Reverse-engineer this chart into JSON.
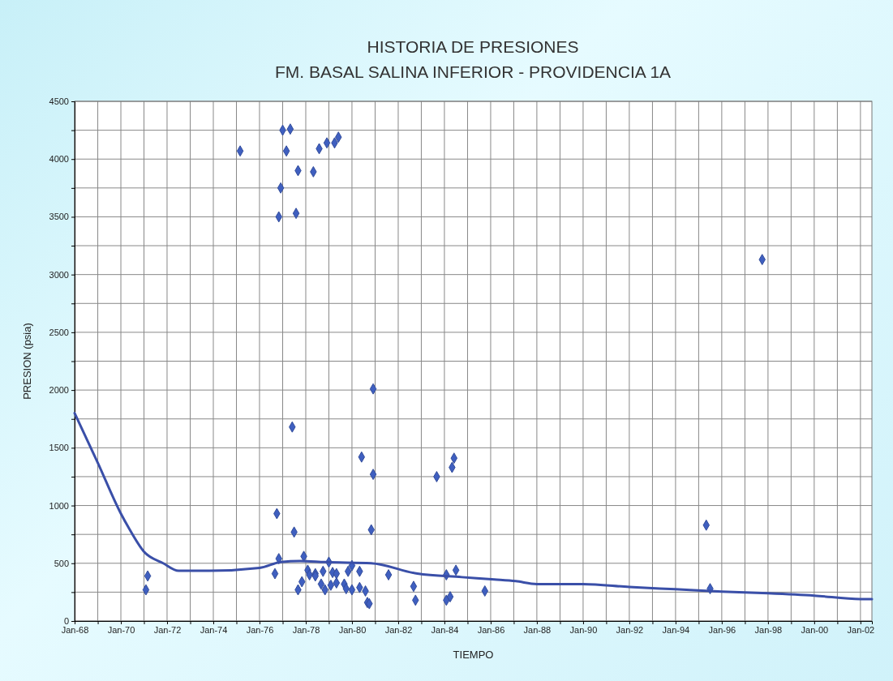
{
  "chart_data": {
    "type": "scatter",
    "title": "HISTORIA DE PRESIONES",
    "subtitle": "FM. BASAL SALINA INFERIOR - PROVIDENCIA 1A",
    "xlabel": "TIEMPO",
    "ylabel": "PRESION (psia)",
    "xlim": [
      "1968-01",
      "2002-07"
    ],
    "xticks": [
      {
        "value": "1968-01",
        "label": "Jan-68"
      },
      {
        "value": "1969-01",
        "label": null
      },
      {
        "value": "1970-01",
        "label": "Jan-70"
      },
      {
        "value": "1971-01",
        "label": null
      },
      {
        "value": "1972-01",
        "label": "Jan-72"
      },
      {
        "value": "1973-01",
        "label": null
      },
      {
        "value": "1974-01",
        "label": "Jan-74"
      },
      {
        "value": "1975-01",
        "label": null
      },
      {
        "value": "1976-01",
        "label": "Jan-76"
      },
      {
        "value": "1977-01",
        "label": null
      },
      {
        "value": "1978-01",
        "label": "Jan-78"
      },
      {
        "value": "1979-01",
        "label": null
      },
      {
        "value": "1980-01",
        "label": "Jan-80"
      },
      {
        "value": "1981-01",
        "label": null
      },
      {
        "value": "1982-01",
        "label": "Jan-82"
      },
      {
        "value": "1983-01",
        "label": null
      },
      {
        "value": "1984-01",
        "label": "Jan-84"
      },
      {
        "value": "1985-01",
        "label": null
      },
      {
        "value": "1986-01",
        "label": "Jan-86"
      },
      {
        "value": "1987-01",
        "label": null
      },
      {
        "value": "1988-01",
        "label": "Jan-88"
      },
      {
        "value": "1989-01",
        "label": null
      },
      {
        "value": "1990-01",
        "label": "Jan-90"
      },
      {
        "value": "1991-01",
        "label": null
      },
      {
        "value": "1992-01",
        "label": "Jan-92"
      },
      {
        "value": "1993-01",
        "label": null
      },
      {
        "value": "1994-01",
        "label": "Jan-94"
      },
      {
        "value": "1995-01",
        "label": null
      },
      {
        "value": "1996-01",
        "label": "Jan-96"
      },
      {
        "value": "1997-01",
        "label": null
      },
      {
        "value": "1998-01",
        "label": "Jan-98"
      },
      {
        "value": "1999-01",
        "label": null
      },
      {
        "value": "2000-01",
        "label": "Jan-00"
      },
      {
        "value": "2001-01",
        "label": null
      },
      {
        "value": "2002-01",
        "label": "Jan-02"
      }
    ],
    "ylim": [
      0,
      4500
    ],
    "yticks": [
      0,
      {
        "value": 250,
        "label": null
      },
      500,
      {
        "value": 750,
        "label": null
      },
      1000,
      {
        "value": 1250,
        "label": null
      },
      1500,
      {
        "value": 1750,
        "label": null
      },
      2000,
      {
        "value": 2250,
        "label": null
      },
      2500,
      {
        "value": 2750,
        "label": null
      },
      3000,
      {
        "value": 3250,
        "label": null
      },
      3500,
      {
        "value": 3750,
        "label": null
      },
      4000,
      {
        "value": 4250,
        "label": null
      },
      4500
    ],
    "grid": true,
    "series": [
      {
        "marker": "diamond",
        "color": "#3f5fc0",
        "x": [
          "1975-03",
          "1976-11",
          "1976-12",
          "1977-01",
          "1977-03",
          "1977-05",
          "1977-08",
          "1977-09",
          "1978-05",
          "1978-08",
          "1978-12",
          "1979-04",
          "1979-06",
          "1977-06",
          "1980-06",
          "1980-12",
          "1976-10",
          "1977-07",
          "1980-11",
          "1976-11",
          "1977-12",
          "1976-09",
          "1971-03",
          "1971-02",
          "1977-11",
          "1977-09",
          "1978-02",
          "1978-03",
          "1978-06",
          "1978-10",
          "1978-06",
          "1979-01",
          "1979-03",
          "1979-05",
          "1978-09",
          "1978-11",
          "1979-02",
          "1979-05",
          "1979-09",
          "1979-10",
          "1979-11",
          "1980-01",
          "1980-05",
          "1980-01",
          "1980-05",
          "1980-08",
          "1980-09",
          "1980-10",
          "1981-08",
          "1980-12",
          "1983-09",
          "1984-06",
          "1984-05",
          "1984-07",
          "1982-09",
          "1982-10",
          "1984-02",
          "1984-02",
          "1984-04",
          "1985-10",
          "1997-10",
          "1995-05",
          "1995-07"
        ],
        "values": [
          4070,
          3500,
          3750,
          4250,
          4070,
          4260,
          3530,
          3900,
          3890,
          4090,
          4140,
          4140,
          4190,
          1680,
          1420,
          1270,
          930,
          770,
          790,
          540,
          560,
          410,
          390,
          270,
          340,
          270,
          440,
          400,
          410,
          430,
          390,
          510,
          420,
          410,
          320,
          270,
          310,
          330,
          320,
          280,
          430,
          480,
          430,
          270,
          290,
          260,
          160,
          150,
          400,
          2010,
          1250,
          1410,
          1330,
          440,
          300,
          180,
          400,
          180,
          210,
          260,
          3130,
          830,
          280
        ]
      },
      {
        "type": "line",
        "marker": "none",
        "line_style": "solid",
        "color": "#3a4fa8",
        "x": [
          "1968-01",
          "1969-01",
          "1970-01",
          "1970-05",
          "1971-01",
          "1971-11",
          "1972-07",
          "1973-11",
          "1976-01",
          "1976-12",
          "1977-10",
          "1978-11",
          "1980-11",
          "1982-11",
          "1984-10",
          "1986-03",
          "1987-02",
          "1988-01",
          "1990-01",
          "1992-01",
          "1994-01",
          "1996-01",
          "1998-01",
          "2000-01",
          "2002-01",
          "2002-07"
        ],
        "values": [
          1800,
          1370,
          930,
          810,
          600,
          500,
          435,
          435,
          460,
          510,
          520,
          510,
          500,
          410,
          380,
          360,
          345,
          320,
          320,
          295,
          275,
          255,
          240,
          220,
          190,
          190
        ]
      }
    ]
  }
}
